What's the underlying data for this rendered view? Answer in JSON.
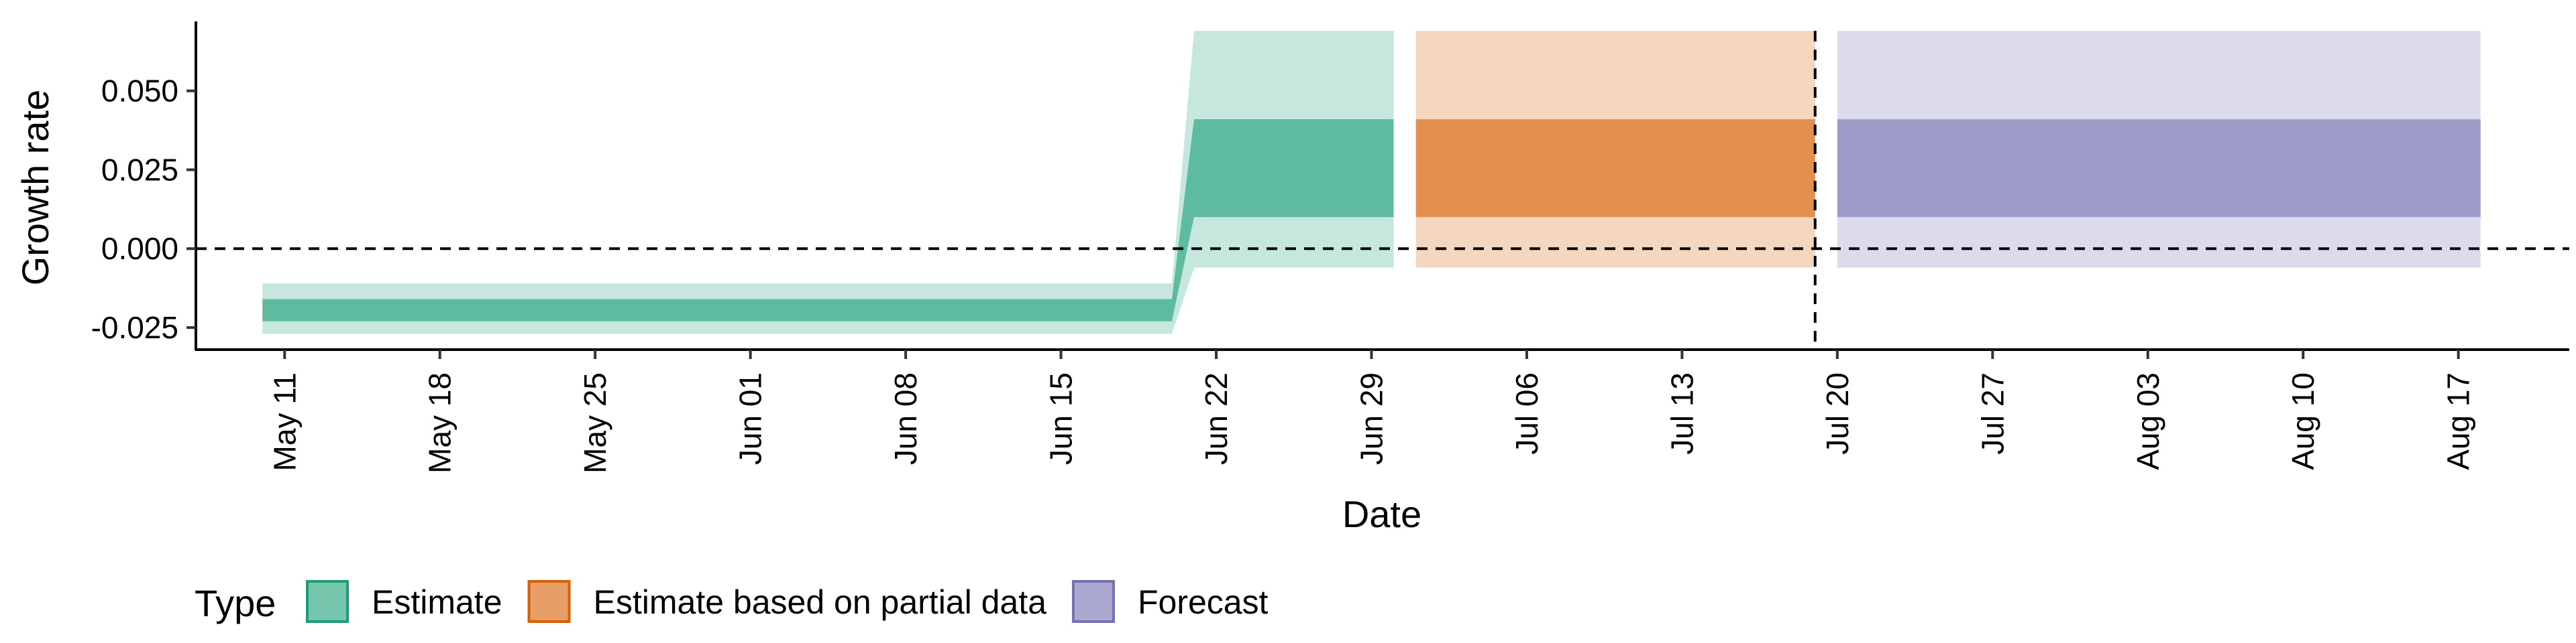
{
  "chart_data": {
    "type": "area",
    "title": "",
    "xlabel": "Date",
    "ylabel": "Growth rate",
    "x_type": "date",
    "xlim": [
      "2020-05-07",
      "2020-08-22"
    ],
    "ylim": [
      -0.032,
      0.072
    ],
    "y_ticks": [
      -0.025,
      0.0,
      0.025,
      0.05
    ],
    "y_tick_labels": [
      "-0.025",
      "0.000",
      "0.025",
      "0.050"
    ],
    "x_ticks": [
      "2020-05-11",
      "2020-05-18",
      "2020-05-25",
      "2020-06-01",
      "2020-06-08",
      "2020-06-15",
      "2020-06-22",
      "2020-06-29",
      "2020-07-06",
      "2020-07-13",
      "2020-07-20",
      "2020-07-27",
      "2020-08-03",
      "2020-08-10",
      "2020-08-17"
    ],
    "x_tick_labels": [
      "May 11",
      "May 18",
      "May 25",
      "Jun 01",
      "Jun 08",
      "Jun 15",
      "Jun 22",
      "Jun 29",
      "Jul 06",
      "Jul 13",
      "Jul 20",
      "Jul 27",
      "Aug 03",
      "Aug 10",
      "Aug 17"
    ],
    "grid": false,
    "reference_lines": [
      {
        "axis": "y",
        "value": 0.0,
        "style": "dashed"
      },
      {
        "axis": "x",
        "value": "2020-07-19",
        "style": "dashed"
      }
    ],
    "legend": {
      "title": "Type",
      "position": "bottom-left",
      "entries": [
        "Estimate",
        "Estimate based on partial data",
        "Forecast"
      ]
    },
    "series": [
      {
        "name": "Estimate",
        "color": "#1b9e77",
        "x": [
          "2020-05-10",
          "2020-06-20",
          "2020-06-21",
          "2020-06-30"
        ],
        "outer_lower": [
          -0.027,
          -0.027,
          -0.006,
          -0.006
        ],
        "outer_upper": [
          -0.011,
          -0.011,
          0.069,
          0.069
        ],
        "inner_lower": [
          -0.023,
          -0.023,
          0.01,
          0.01
        ],
        "inner_upper": [
          -0.016,
          -0.016,
          0.041,
          0.041
        ]
      },
      {
        "name": "Estimate based on partial data",
        "color": "#d95f02",
        "x": [
          "2020-07-01",
          "2020-07-19"
        ],
        "outer_lower": [
          -0.006,
          -0.006
        ],
        "outer_upper": [
          0.069,
          0.069
        ],
        "inner_lower": [
          0.01,
          0.01
        ],
        "inner_upper": [
          0.041,
          0.041
        ]
      },
      {
        "name": "Forecast",
        "color": "#7570b3",
        "x": [
          "2020-07-20",
          "2020-08-18"
        ],
        "outer_lower": [
          -0.006,
          -0.006
        ],
        "outer_upper": [
          0.069,
          0.069
        ],
        "inner_lower": [
          0.01,
          0.01
        ],
        "inner_upper": [
          0.041,
          0.041
        ]
      }
    ]
  }
}
